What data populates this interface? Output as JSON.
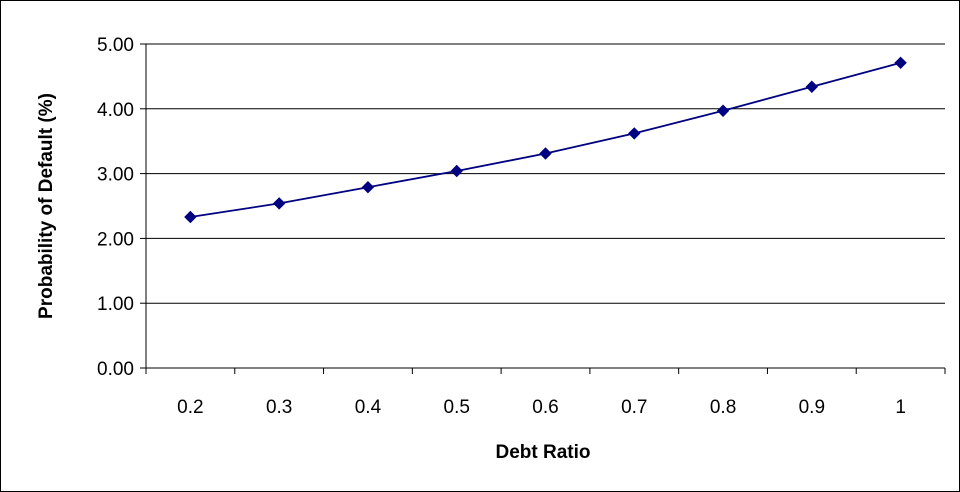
{
  "chart_data": {
    "type": "line",
    "title": "",
    "xlabel": "Debt Ratio",
    "ylabel": "Probability of Default (%)",
    "categories": [
      "0.2",
      "0.3",
      "0.4",
      "0.5",
      "0.6",
      "0.7",
      "0.8",
      "0.9",
      "1"
    ],
    "series": [
      {
        "values": [
          2.33,
          2.54,
          2.79,
          3.04,
          3.31,
          3.62,
          3.97,
          4.34,
          4.71
        ],
        "color": "#000080",
        "marker": "diamond"
      }
    ],
    "ylim": [
      0,
      5
    ],
    "yticks": [
      "0.00",
      "1.00",
      "2.00",
      "3.00",
      "4.00",
      "5.00"
    ],
    "grid": "horizontal",
    "legend": "none"
  }
}
